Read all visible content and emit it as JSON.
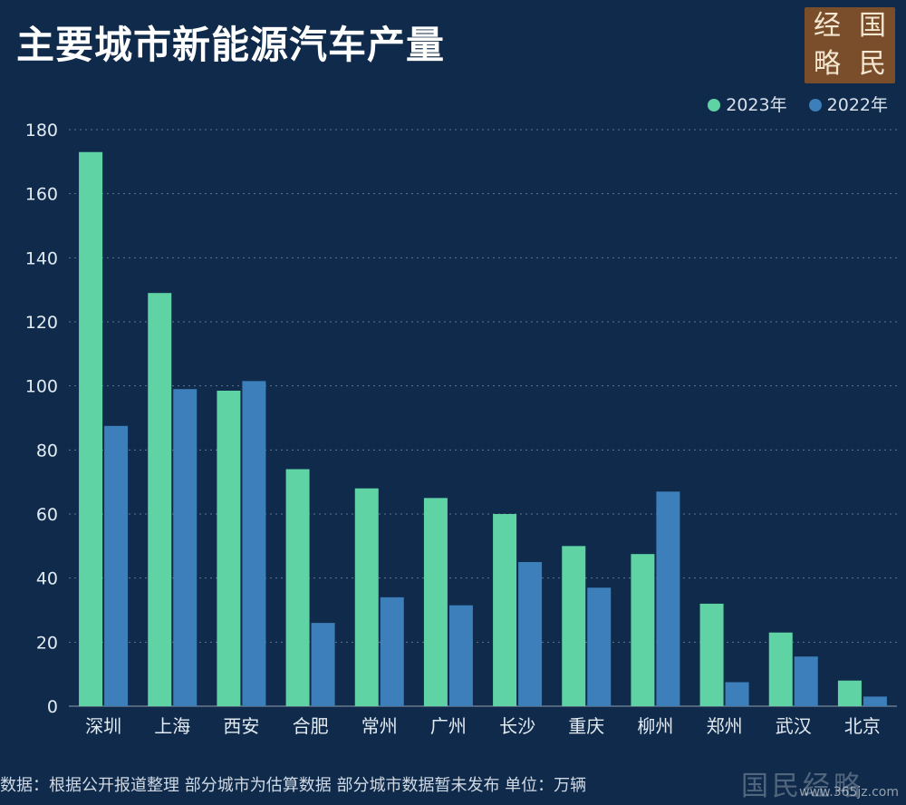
{
  "title": "主要城市新能源汽车产量",
  "logo": {
    "chars": [
      "经",
      "国",
      "略",
      "民"
    ]
  },
  "footer": "数据：根据公开报道整理 部分城市为估算数据 部分城市数据暂未发布 单位：万辆",
  "watermark": {
    "text": "国民经略",
    "site": "www.365jz.com"
  },
  "colors": {
    "background": "#0f2a4a",
    "series_2023": "#5fd3a4",
    "series_2022": "#3d7fba",
    "text": "#d8e1ec"
  },
  "chart_data": {
    "type": "bar",
    "categories": [
      "深圳",
      "上海",
      "西安",
      "合肥",
      "常州",
      "广州",
      "长沙",
      "重庆",
      "柳州",
      "郑州",
      "武汉",
      "北京"
    ],
    "series": [
      {
        "name": "2023年",
        "values": [
          173,
          129,
          98.5,
          74,
          68,
          65,
          60,
          50,
          47.5,
          32,
          23,
          8
        ]
      },
      {
        "name": "2022年",
        "values": [
          87.5,
          99,
          101.5,
          26,
          34,
          31.5,
          45,
          37,
          67,
          7.5,
          15.5,
          3
        ]
      }
    ],
    "yticks": [
      0,
      20,
      40,
      60,
      80,
      100,
      120,
      140,
      160,
      180
    ],
    "ylim": [
      0,
      180
    ],
    "grid": true,
    "legend": "top-right"
  }
}
